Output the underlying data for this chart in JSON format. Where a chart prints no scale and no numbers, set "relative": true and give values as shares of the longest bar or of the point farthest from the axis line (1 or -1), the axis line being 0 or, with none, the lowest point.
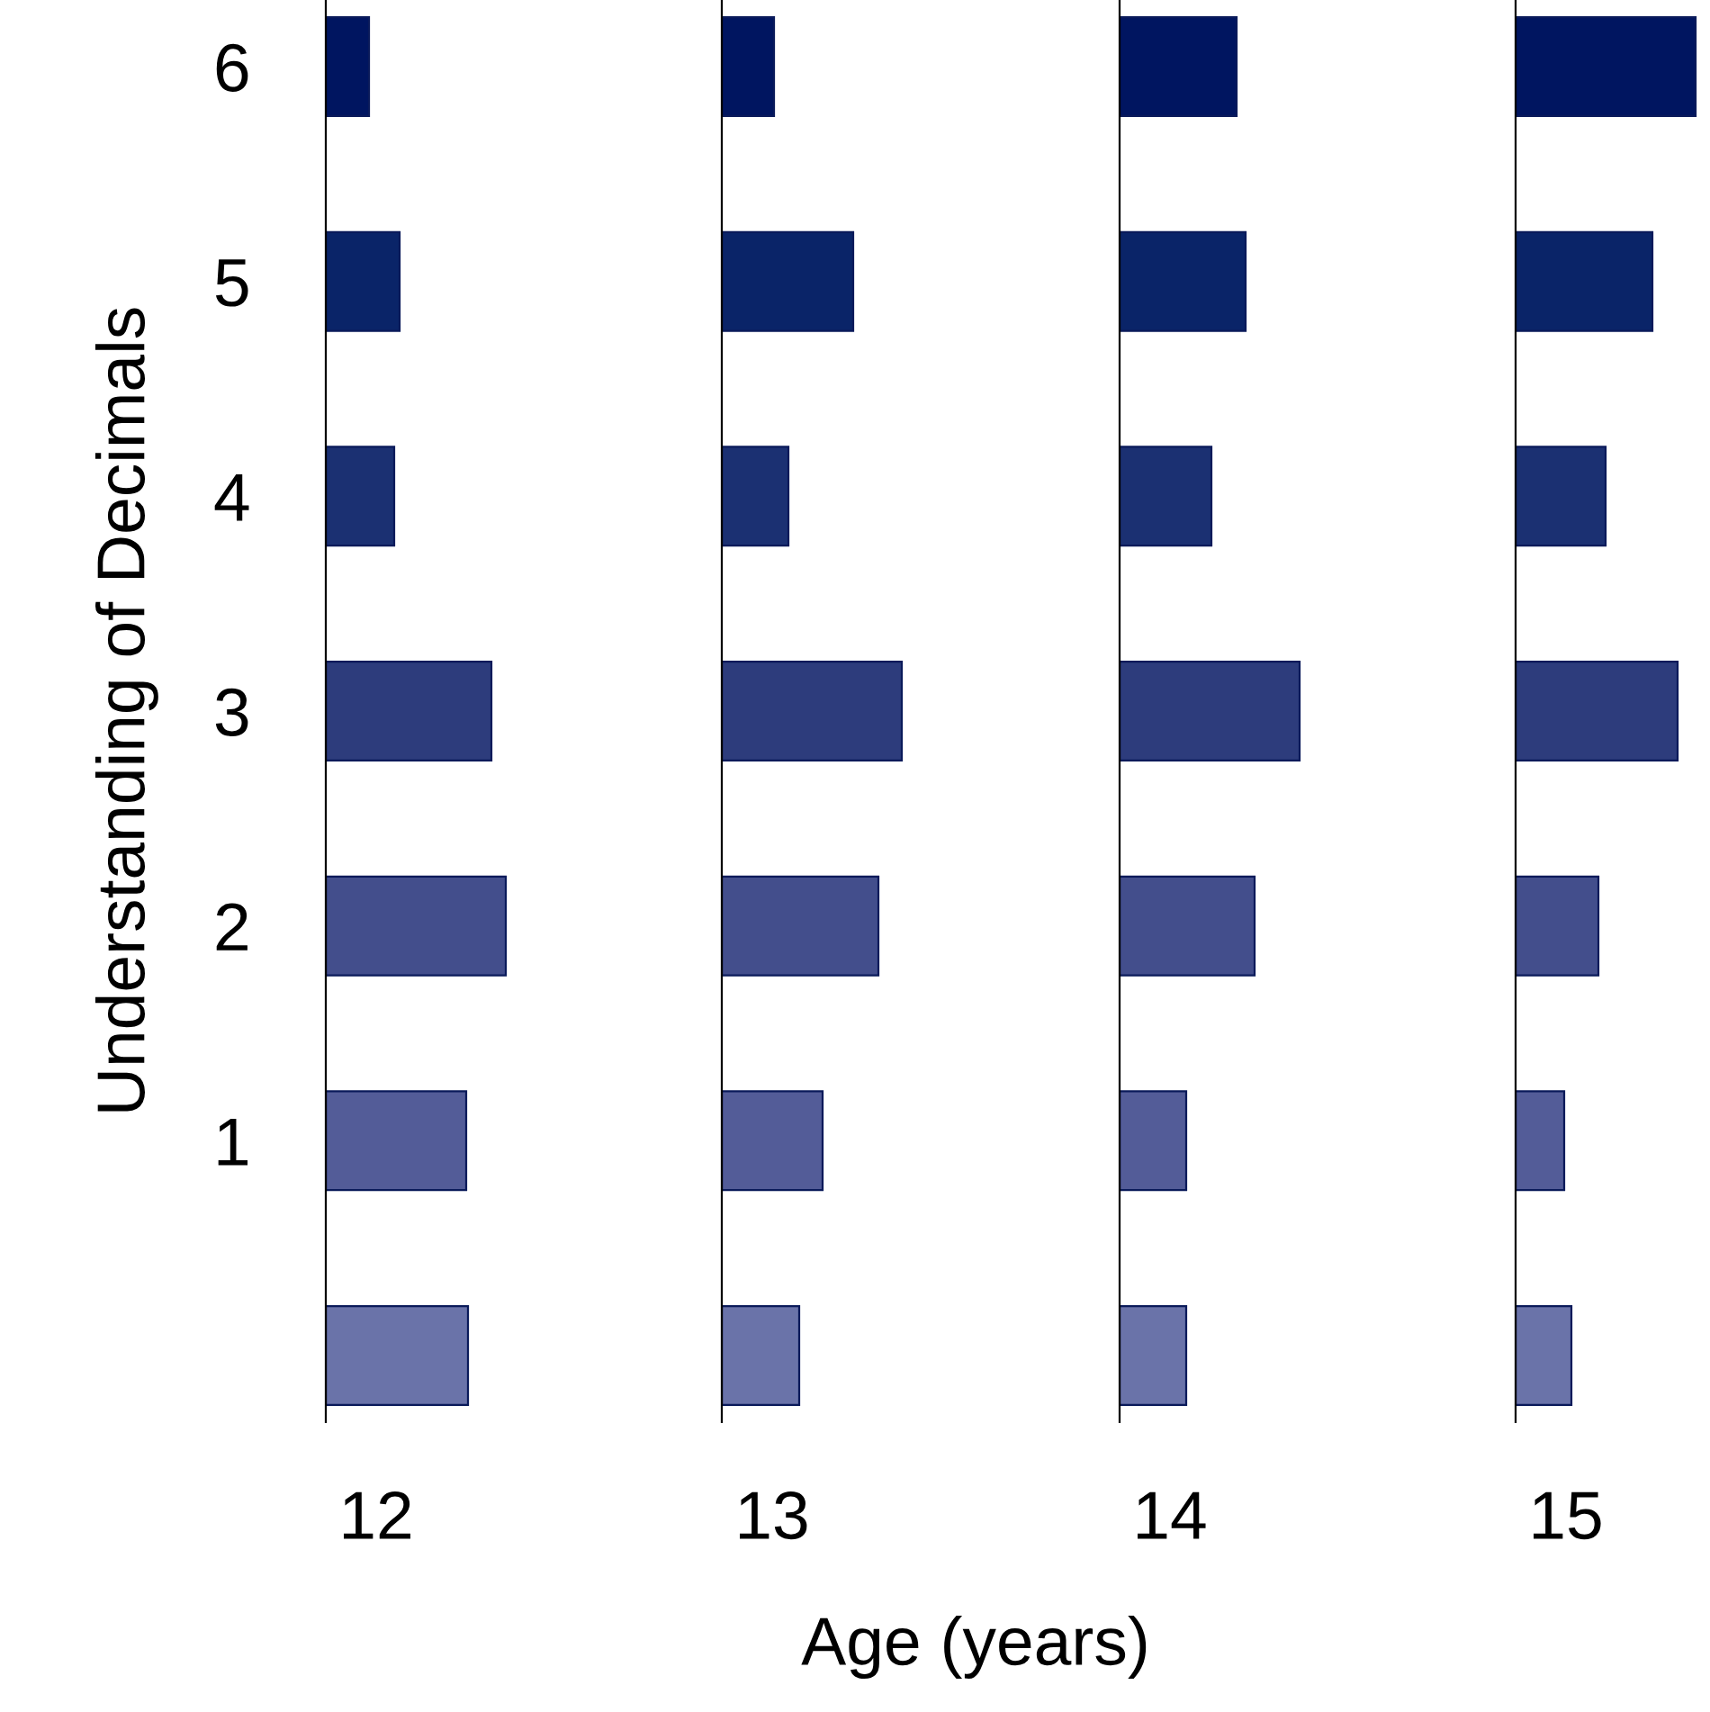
{
  "chart_data": [
    {
      "type": "bar",
      "orientation": "horizontal",
      "relative": true,
      "xlabel": "12",
      "ylabel": "Understanding of Decimals",
      "tick_labels": "y",
      "annotations": [
        "Age (years)"
      ],
      "categories": [
        "6",
        "5",
        "4",
        "3",
        "2",
        "1",
        null
      ],
      "values": [
        0.24,
        0.41,
        0.38,
        0.92,
        1,
        0.78,
        0.79
      ],
      "colors": [
        "#001560",
        "#0a2468",
        "#1b3072",
        "#2d3c7c",
        "#434e8c",
        "#535c98",
        "#6a73a9"
      ]
    },
    {
      "type": "bar",
      "orientation": "horizontal",
      "relative": true,
      "xlabel": "13",
      "tick_labels": false,
      "categories": [
        "6",
        "5",
        "4",
        "3",
        "2",
        "1",
        null
      ],
      "values": [
        0.29,
        0.73,
        0.37,
        1,
        0.87,
        0.56,
        0.43
      ],
      "colors": [
        "#001560",
        "#0a2468",
        "#1b3072",
        "#2d3c7c",
        "#434e8c",
        "#535c98",
        "#6a73a9"
      ]
    },
    {
      "type": "bar",
      "orientation": "horizontal",
      "relative": true,
      "xlabel": "14",
      "tick_labels": false,
      "categories": [
        "6",
        "5",
        "4",
        "3",
        "2",
        "1",
        null
      ],
      "values": [
        0.65,
        0.7,
        0.51,
        1,
        0.75,
        0.37,
        0.37
      ],
      "colors": [
        "#001560",
        "#0a2468",
        "#1b3072",
        "#2d3c7c",
        "#434e8c",
        "#535c98",
        "#6a73a9"
      ]
    },
    {
      "type": "bar",
      "orientation": "horizontal",
      "relative": true,
      "xlabel": "15",
      "tick_labels": false,
      "categories": [
        "6",
        "5",
        "4",
        "3",
        "2",
        "1",
        null
      ],
      "values": [
        1,
        0.76,
        0.5,
        0.9,
        0.46,
        0.27,
        0.31
      ],
      "colors": [
        "#001560",
        "#0a2468",
        "#1b3072",
        "#2d3c7c",
        "#434e8c",
        "#535c98",
        "#6a73a9"
      ]
    }
  ]
}
